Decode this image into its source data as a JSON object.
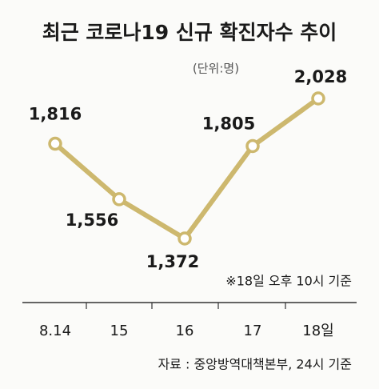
{
  "chart_data": {
    "type": "line",
    "title": "최근 코로나19 신규 확진자수 추이",
    "subtitle": "(단위:명)",
    "categories": [
      "8.14",
      "15",
      "16",
      "17",
      "18일"
    ],
    "series": [
      {
        "name": "신규 확진자수",
        "color": "#cdb86e",
        "values": [
          1816,
          1556,
          1372,
          1805,
          2028
        ],
        "value_labels": [
          "1,816",
          "1,556",
          "1,372",
          "1,805",
          "2,028"
        ]
      }
    ],
    "annotation": "※18일 오후 10시 기준",
    "source": "자료 : 중앙방역대책본부, 24시 기준"
  }
}
